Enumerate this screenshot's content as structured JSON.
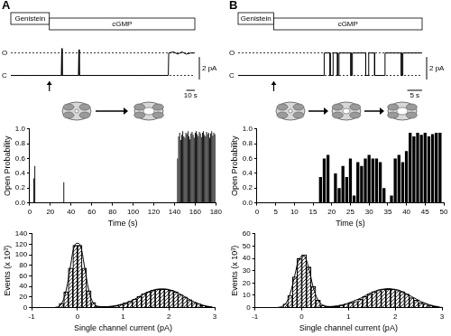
{
  "chart_data": [
    {
      "type": "line",
      "panel": "A",
      "color": "#000000",
      "tick_labels": false,
      "x": [
        -45,
        14,
        14.5,
        15,
        34,
        34.5,
        35,
        139,
        139.5,
        145,
        150,
        155,
        160,
        165,
        170
      ],
      "values": [
        0,
        0,
        2.4,
        0,
        0,
        2.3,
        0,
        0,
        2,
        2.1,
        1.9,
        2.1,
        1.9,
        2,
        2
      ],
      "xlim": [
        -45,
        170
      ],
      "ylim": [
        -1,
        3.5
      ],
      "levels": [
        {
          "label": "O",
          "value": 2
        },
        {
          "label": "C",
          "value": 0
        }
      ],
      "applications": [
        {
          "label": "Genistein",
          "start": -45,
          "end": 0
        },
        {
          "label": "cGMP",
          "start": 0,
          "end": 170
        }
      ],
      "scale_bars": {
        "y": {
          "label": "2 pA",
          "value": 2
        },
        "x": {
          "label": "10 s",
          "value": 10
        }
      }
    },
    {
      "type": "bar",
      "color": "#000000",
      "xlabel": "Time (s)",
      "ylabel": "Open Probability",
      "x": [
        4,
        5,
        33,
        143,
        144,
        145,
        146,
        147,
        148,
        149,
        150,
        151,
        152,
        153,
        154,
        155,
        156,
        157,
        158,
        159,
        160,
        161,
        162,
        163,
        164,
        165,
        166,
        167,
        168,
        169,
        170,
        171,
        172,
        173,
        174,
        175,
        176,
        177,
        178,
        179
      ],
      "values": [
        0.33,
        0.5,
        0.28,
        0.6,
        0.9,
        0.95,
        0.85,
        0.92,
        0.97,
        0.9,
        0.88,
        0.95,
        0.93,
        0.97,
        0.9,
        0.86,
        0.94,
        0.96,
        0.92,
        0.88,
        0.95,
        0.97,
        0.93,
        0.9,
        0.96,
        0.94,
        0.89,
        0.95,
        0.97,
        0.92,
        0.9,
        0.96,
        0.93,
        0.95,
        0.88,
        0.94,
        0.97,
        0.91,
        0.95,
        0.93
      ],
      "xlim": [
        0,
        180
      ],
      "xticks": [
        0,
        20,
        40,
        60,
        80,
        100,
        120,
        140,
        160,
        180
      ],
      "ylim": [
        0,
        1
      ],
      "yticks": [
        {
          "value": 0,
          "label": "0.0"
        },
        0.2,
        0.4,
        0.6,
        0.8,
        {
          "value": 1,
          "label": "1.0"
        }
      ]
    },
    {
      "type": "histogram",
      "color": "#000000",
      "xlabel": "Single channel current (pA)",
      "ylabel": "Events (x 10³)",
      "bins": [
        -1,
        -0.9,
        -0.8,
        -0.7,
        -0.6,
        -0.5,
        -0.4,
        -0.3,
        -0.2,
        -0.1,
        0,
        0.1,
        0.2,
        0.3,
        0.4,
        0.5,
        0.6,
        0.7,
        0.8,
        0.9,
        1,
        1.1,
        1.2,
        1.3,
        1.4,
        1.5,
        1.6,
        1.7,
        1.8,
        1.9,
        2,
        2.1,
        2.2,
        2.3,
        2.4,
        2.5,
        2.6,
        2.7,
        2.8,
        2.9,
        3
      ],
      "values": [
        0,
        0,
        0,
        0,
        0,
        1,
        8,
        30,
        75,
        118,
        118,
        75,
        32,
        10,
        3,
        2,
        2,
        3,
        4,
        6,
        9,
        12,
        16,
        21,
        26,
        30,
        33,
        35,
        35,
        35,
        33,
        30,
        25,
        20,
        15,
        10,
        7,
        4,
        2,
        1
      ],
      "fit": [
        0,
        0,
        0,
        0,
        0,
        1,
        7,
        32,
        80,
        120,
        120,
        80,
        32,
        8,
        2,
        1,
        1.5,
        2.5,
        4,
        6,
        8.5,
        12,
        16,
        21,
        26,
        30,
        33,
        35,
        35.5,
        35,
        33,
        30,
        25.5,
        20.5,
        15.5,
        11,
        7.5,
        4.5,
        2.5,
        1.5
      ],
      "xlim": [
        -1,
        3
      ],
      "xticks": [
        -1,
        0,
        1,
        2,
        3
      ],
      "ylim": [
        0,
        140
      ],
      "yticks": [
        0,
        20,
        40,
        60,
        80,
        100,
        120,
        140
      ]
    },
    {
      "type": "line",
      "panel": "B",
      "color": "#000000",
      "tick_labels": false,
      "x": [
        -12,
        17,
        17,
        19,
        19,
        20,
        20,
        21.5,
        21.5,
        22,
        22,
        26,
        26,
        26.5,
        26.5,
        31,
        31,
        32,
        32,
        34,
        34,
        37.5,
        37.5,
        43,
        43,
        43.5,
        43.5,
        50
      ],
      "values": [
        0,
        0,
        2,
        2,
        0,
        0,
        2,
        2,
        0,
        0,
        2,
        2,
        0,
        0,
        2,
        2,
        0,
        0,
        2,
        2,
        0,
        0,
        2,
        2,
        0,
        0,
        2,
        2
      ],
      "xlim": [
        -12,
        50
      ],
      "ylim": [
        -1,
        3.5
      ],
      "levels": [
        {
          "label": "O",
          "value": 2
        },
        {
          "label": "C",
          "value": 0
        }
      ],
      "applications": [
        {
          "label": "Genistein",
          "start": -12,
          "end": 0
        },
        {
          "label": "cGMP",
          "start": 0,
          "end": 50
        }
      ],
      "scale_bars": {
        "y": {
          "label": "2 pA",
          "value": 2
        },
        "x": {
          "label": "5 s",
          "value": 5
        }
      }
    },
    {
      "type": "bar",
      "color": "#000000",
      "xlabel": "Time (s)",
      "ylabel": "Open Probability",
      "x": [
        17,
        18,
        19,
        21,
        22,
        23,
        24,
        25,
        26,
        27,
        28,
        29,
        30,
        31,
        32,
        33,
        34,
        36,
        37,
        38,
        39,
        40,
        41,
        42,
        43,
        44,
        45,
        46,
        47,
        48,
        49
      ],
      "values": [
        0.35,
        0.6,
        0.65,
        0.4,
        0.2,
        0.5,
        0.35,
        0.6,
        0.1,
        0.55,
        0.5,
        0.6,
        0.65,
        0.6,
        0.6,
        0.55,
        0.2,
        0.1,
        0.6,
        0.65,
        0.55,
        0.7,
        0.95,
        0.9,
        0.95,
        0.92,
        0.95,
        0.9,
        0.93,
        0.95,
        0.95
      ],
      "xlim": [
        0,
        50
      ],
      "xticks": [
        0,
        5,
        10,
        15,
        20,
        25,
        30,
        35,
        40,
        45,
        50
      ],
      "ylim": [
        0,
        1
      ],
      "yticks": [
        {
          "value": 0,
          "label": "0.0"
        },
        0.2,
        0.4,
        0.6,
        0.8,
        {
          "value": 1,
          "label": "1.0"
        }
      ]
    },
    {
      "type": "histogram",
      "color": "#000000",
      "xlabel": "Single channel current (pA)",
      "ylabel": "Events (x 10³)",
      "bins": [
        -1,
        -0.9,
        -0.8,
        -0.7,
        -0.6,
        -0.5,
        -0.4,
        -0.3,
        -0.2,
        -0.1,
        0,
        0.1,
        0.2,
        0.3,
        0.4,
        0.5,
        0.6,
        0.7,
        0.8,
        0.9,
        1,
        1.1,
        1.2,
        1.3,
        1.4,
        1.5,
        1.6,
        1.7,
        1.8,
        1.9,
        2,
        2.1,
        2.2,
        2.3,
        2.4,
        2.5,
        2.6,
        2.7,
        2.8,
        2.9,
        3
      ],
      "values": [
        0,
        0,
        0,
        0,
        0,
        0.5,
        3,
        10,
        25,
        40,
        43,
        33,
        17,
        6,
        2,
        1,
        1,
        1,
        2,
        3,
        4,
        5,
        7,
        9,
        11,
        13,
        14,
        15,
        15,
        15,
        14,
        13,
        11,
        8,
        6,
        4,
        3,
        2,
        1,
        0.5
      ],
      "fit": [
        0,
        0,
        0,
        0,
        0,
        0.5,
        3,
        11,
        26,
        40,
        42,
        32,
        16,
        6,
        2,
        1,
        1,
        1.5,
        2,
        3,
        4.5,
        6,
        7.5,
        9.5,
        11.5,
        13,
        14.5,
        15,
        15.5,
        15,
        14.5,
        13,
        11,
        9,
        7,
        5,
        3.5,
        2,
        1.2,
        0.6
      ],
      "xlim": [
        -1,
        3
      ],
      "xticks": [
        -1,
        0,
        1,
        2,
        3
      ],
      "ylim": [
        0,
        60
      ],
      "yticks": [
        0,
        10,
        20,
        30,
        40,
        50,
        60
      ]
    }
  ]
}
